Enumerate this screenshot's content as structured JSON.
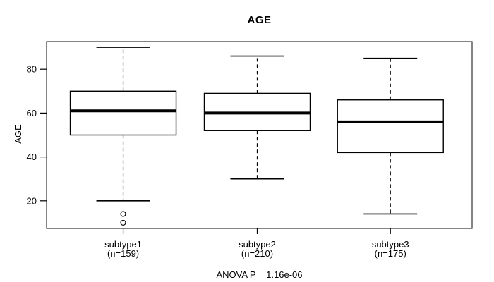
{
  "figure": {
    "title": "AGE",
    "y_axis_title": "AGE",
    "footer": "ANOVA P = 1.16e-06"
  },
  "chart_data": {
    "type": "boxplot",
    "title": "AGE",
    "ylabel": "AGE",
    "xlabel": "",
    "ylim": [
      7.4,
      92.6
    ],
    "yticks": [
      20,
      40,
      60,
      80
    ],
    "grid": false,
    "legend": "none",
    "background_color": "#ffffff",
    "line_color": "#000000",
    "annotation": "ANOVA P = 1.16e-06",
    "groups": [
      {
        "label": "subtype1",
        "n_label": "(n=159)",
        "n": 159,
        "whisker_low": 20,
        "q1": 50,
        "median": 61,
        "q3": 70,
        "whisker_high": 90,
        "outliers": [
          14,
          10
        ]
      },
      {
        "label": "subtype2",
        "n_label": "(n=210)",
        "n": 210,
        "whisker_low": 30,
        "q1": 52,
        "median": 60,
        "q3": 69,
        "whisker_high": 86,
        "outliers": []
      },
      {
        "label": "subtype3",
        "n_label": "(n=175)",
        "n": 175,
        "whisker_low": 14,
        "q1": 42,
        "median": 56,
        "q3": 66,
        "whisker_high": 85,
        "outliers": []
      }
    ]
  }
}
